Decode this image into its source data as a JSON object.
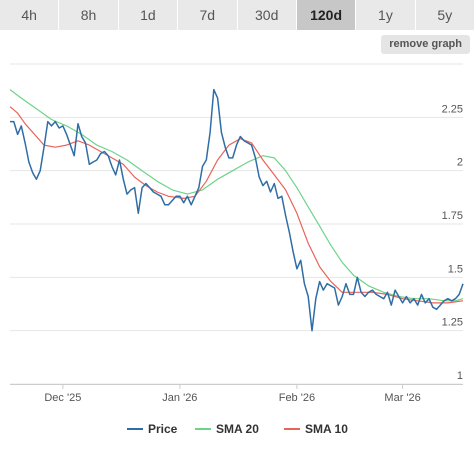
{
  "tabs": [
    {
      "label": "4h",
      "active": false
    },
    {
      "label": "8h",
      "active": false
    },
    {
      "label": "1d",
      "active": false
    },
    {
      "label": "7d",
      "active": false
    },
    {
      "label": "30d",
      "active": false
    },
    {
      "label": "120d",
      "active": true
    },
    {
      "label": "1y",
      "active": false
    },
    {
      "label": "5y",
      "active": false
    }
  ],
  "remove_button_label": "remove graph",
  "chart_data": {
    "type": "line",
    "x_ticks": [
      "Dec '25",
      "Jan '26",
      "Feb '26",
      "Mar '26"
    ],
    "x_tick_dates": [
      "2025-12-01",
      "2026-01-01",
      "2026-02-01",
      "2026-03-01"
    ],
    "x_range": [
      "2025-11-17",
      "2026-03-17"
    ],
    "ylim": [
      1,
      2.5
    ],
    "y_ticks": [
      1,
      1.25,
      1.5,
      1.75,
      2,
      2.25
    ],
    "y_tick_labels": [
      "1",
      "1.25",
      "1.5",
      "1.75",
      "2",
      "2.25"
    ],
    "y_axis_position": "right",
    "grid": "horizontal",
    "legend_position": "bottom",
    "series": [
      {
        "name": "Price",
        "color": "#2f6da6",
        "points": [
          [
            "2025-11-17",
            2.23
          ],
          [
            "2025-11-18",
            2.23
          ],
          [
            "2025-11-19",
            2.17
          ],
          [
            "2025-11-20",
            2.21
          ],
          [
            "2025-11-21",
            2.13
          ],
          [
            "2025-11-22",
            2.04
          ],
          [
            "2025-11-23",
            1.99
          ],
          [
            "2025-11-24",
            1.96
          ],
          [
            "2025-11-25",
            2.0
          ],
          [
            "2025-11-26",
            2.11
          ],
          [
            "2025-11-27",
            2.23
          ],
          [
            "2025-11-28",
            2.21
          ],
          [
            "2025-11-29",
            2.23
          ],
          [
            "2025-11-30",
            2.2
          ],
          [
            "2025-12-01",
            2.21
          ],
          [
            "2025-12-02",
            2.17
          ],
          [
            "2025-12-03",
            2.12
          ],
          [
            "2025-12-04",
            2.07
          ],
          [
            "2025-12-05",
            2.22
          ],
          [
            "2025-12-06",
            2.16
          ],
          [
            "2025-12-07",
            2.13
          ],
          [
            "2025-12-08",
            2.03
          ],
          [
            "2025-12-09",
            2.04
          ],
          [
            "2025-12-10",
            2.05
          ],
          [
            "2025-12-11",
            2.08
          ],
          [
            "2025-12-12",
            2.09
          ],
          [
            "2025-12-13",
            2.07
          ],
          [
            "2025-12-14",
            2.02
          ],
          [
            "2025-12-15",
            1.98
          ],
          [
            "2025-12-16",
            2.05
          ],
          [
            "2025-12-17",
            1.96
          ],
          [
            "2025-12-18",
            1.89
          ],
          [
            "2025-12-19",
            1.91
          ],
          [
            "2025-12-20",
            1.92
          ],
          [
            "2025-12-21",
            1.8
          ],
          [
            "2025-12-22",
            1.92
          ],
          [
            "2025-12-23",
            1.94
          ],
          [
            "2025-12-24",
            1.92
          ],
          [
            "2025-12-25",
            1.9
          ],
          [
            "2025-12-26",
            1.89
          ],
          [
            "2025-12-27",
            1.88
          ],
          [
            "2025-12-28",
            1.84
          ],
          [
            "2025-12-29",
            1.84
          ],
          [
            "2025-12-30",
            1.86
          ],
          [
            "2025-12-31",
            1.88
          ],
          [
            "2026-01-01",
            1.88
          ],
          [
            "2026-01-02",
            1.85
          ],
          [
            "2026-01-03",
            1.88
          ],
          [
            "2026-01-04",
            1.84
          ],
          [
            "2026-01-05",
            1.88
          ],
          [
            "2026-01-06",
            1.92
          ],
          [
            "2026-01-07",
            2.02
          ],
          [
            "2026-01-08",
            2.05
          ],
          [
            "2026-01-09",
            2.18
          ],
          [
            "2026-01-10",
            2.38
          ],
          [
            "2026-01-11",
            2.34
          ],
          [
            "2026-01-12",
            2.18
          ],
          [
            "2026-01-13",
            2.11
          ],
          [
            "2026-01-14",
            2.06
          ],
          [
            "2026-01-15",
            2.06
          ],
          [
            "2026-01-16",
            2.12
          ],
          [
            "2026-01-17",
            2.16
          ],
          [
            "2026-01-18",
            2.14
          ],
          [
            "2026-01-19",
            2.13
          ],
          [
            "2026-01-20",
            2.12
          ],
          [
            "2026-01-21",
            2.06
          ],
          [
            "2026-01-22",
            1.97
          ],
          [
            "2026-01-23",
            1.93
          ],
          [
            "2026-01-24",
            1.95
          ],
          [
            "2026-01-25",
            1.9
          ],
          [
            "2026-01-26",
            1.94
          ],
          [
            "2026-01-27",
            1.87
          ],
          [
            "2026-01-28",
            1.88
          ],
          [
            "2026-01-29",
            1.79
          ],
          [
            "2026-01-30",
            1.71
          ],
          [
            "2026-01-31",
            1.62
          ],
          [
            "2026-02-01",
            1.54
          ],
          [
            "2026-02-02",
            1.58
          ],
          [
            "2026-02-03",
            1.47
          ],
          [
            "2026-02-04",
            1.41
          ],
          [
            "2026-02-05",
            1.25
          ],
          [
            "2026-02-06",
            1.4
          ],
          [
            "2026-02-07",
            1.48
          ],
          [
            "2026-02-08",
            1.44
          ],
          [
            "2026-02-09",
            1.47
          ],
          [
            "2026-02-10",
            1.46
          ],
          [
            "2026-02-11",
            1.45
          ],
          [
            "2026-02-12",
            1.37
          ],
          [
            "2026-02-13",
            1.41
          ],
          [
            "2026-02-14",
            1.47
          ],
          [
            "2026-02-15",
            1.42
          ],
          [
            "2026-02-16",
            1.42
          ],
          [
            "2026-02-17",
            1.5
          ],
          [
            "2026-02-18",
            1.43
          ],
          [
            "2026-02-19",
            1.41
          ],
          [
            "2026-02-20",
            1.43
          ],
          [
            "2026-02-21",
            1.44
          ],
          [
            "2026-02-22",
            1.42
          ],
          [
            "2026-02-23",
            1.41
          ],
          [
            "2026-02-24",
            1.4
          ],
          [
            "2026-02-25",
            1.43
          ],
          [
            "2026-02-26",
            1.37
          ],
          [
            "2026-02-27",
            1.44
          ],
          [
            "2026-02-28",
            1.41
          ],
          [
            "2026-03-01",
            1.38
          ],
          [
            "2026-03-02",
            1.41
          ],
          [
            "2026-03-03",
            1.38
          ],
          [
            "2026-03-04",
            1.4
          ],
          [
            "2026-03-05",
            1.37
          ],
          [
            "2026-03-06",
            1.42
          ],
          [
            "2026-03-07",
            1.38
          ],
          [
            "2026-03-08",
            1.4
          ],
          [
            "2026-03-09",
            1.36
          ],
          [
            "2026-03-10",
            1.35
          ],
          [
            "2026-03-11",
            1.37
          ],
          [
            "2026-03-12",
            1.39
          ],
          [
            "2026-03-13",
            1.4
          ],
          [
            "2026-03-14",
            1.39
          ],
          [
            "2026-03-15",
            1.4
          ],
          [
            "2026-03-16",
            1.42
          ],
          [
            "2026-03-17",
            1.47
          ]
        ]
      },
      {
        "name": "SMA 20",
        "color": "#6fd38a",
        "points": [
          [
            "2025-11-17",
            2.38
          ],
          [
            "2025-11-20",
            2.34
          ],
          [
            "2025-11-24",
            2.29
          ],
          [
            "2025-11-28",
            2.24
          ],
          [
            "2025-12-02",
            2.21
          ],
          [
            "2025-12-06",
            2.17
          ],
          [
            "2025-12-10",
            2.12
          ],
          [
            "2025-12-14",
            2.09
          ],
          [
            "2025-12-18",
            2.05
          ],
          [
            "2025-12-22",
            2.0
          ],
          [
            "2025-12-26",
            1.95
          ],
          [
            "2025-12-30",
            1.91
          ],
          [
            "2026-01-03",
            1.89
          ],
          [
            "2026-01-07",
            1.91
          ],
          [
            "2026-01-11",
            1.96
          ],
          [
            "2026-01-15",
            2.0
          ],
          [
            "2026-01-19",
            2.04
          ],
          [
            "2026-01-23",
            2.07
          ],
          [
            "2026-01-26",
            2.06
          ],
          [
            "2026-01-29",
            2.0
          ],
          [
            "2026-02-01",
            1.92
          ],
          [
            "2026-02-04",
            1.83
          ],
          [
            "2026-02-07",
            1.74
          ],
          [
            "2026-02-10",
            1.65
          ],
          [
            "2026-02-13",
            1.57
          ],
          [
            "2026-02-16",
            1.51
          ],
          [
            "2026-02-20",
            1.46
          ],
          [
            "2026-02-24",
            1.43
          ],
          [
            "2026-02-28",
            1.41
          ],
          [
            "2026-03-04",
            1.4
          ],
          [
            "2026-03-08",
            1.4
          ],
          [
            "2026-03-12",
            1.39
          ],
          [
            "2026-03-15",
            1.39
          ],
          [
            "2026-03-17",
            1.4
          ]
        ]
      },
      {
        "name": "SMA 10",
        "color": "#e8635a",
        "points": [
          [
            "2025-11-17",
            2.3
          ],
          [
            "2025-11-19",
            2.27
          ],
          [
            "2025-11-21",
            2.22
          ],
          [
            "2025-11-24",
            2.16
          ],
          [
            "2025-11-26",
            2.12
          ],
          [
            "2025-11-29",
            2.11
          ],
          [
            "2025-12-02",
            2.12
          ],
          [
            "2025-12-05",
            2.14
          ],
          [
            "2025-12-08",
            2.12
          ],
          [
            "2025-12-11",
            2.09
          ],
          [
            "2025-12-14",
            2.06
          ],
          [
            "2025-12-17",
            2.03
          ],
          [
            "2025-12-20",
            1.97
          ],
          [
            "2025-12-23",
            1.93
          ],
          [
            "2025-12-26",
            1.9
          ],
          [
            "2025-12-29",
            1.88
          ],
          [
            "2026-01-02",
            1.87
          ],
          [
            "2026-01-05",
            1.88
          ],
          [
            "2026-01-08",
            1.95
          ],
          [
            "2026-01-11",
            2.05
          ],
          [
            "2026-01-14",
            2.12
          ],
          [
            "2026-01-17",
            2.15
          ],
          [
            "2026-01-20",
            2.13
          ],
          [
            "2026-01-23",
            2.05
          ],
          [
            "2026-01-26",
            1.98
          ],
          [
            "2026-01-29",
            1.91
          ],
          [
            "2026-02-01",
            1.8
          ],
          [
            "2026-02-04",
            1.66
          ],
          [
            "2026-02-07",
            1.55
          ],
          [
            "2026-02-10",
            1.48
          ],
          [
            "2026-02-13",
            1.43
          ],
          [
            "2026-02-17",
            1.43
          ],
          [
            "2026-02-21",
            1.43
          ],
          [
            "2026-02-25",
            1.42
          ],
          [
            "2026-03-01",
            1.4
          ],
          [
            "2026-03-05",
            1.39
          ],
          [
            "2026-03-09",
            1.38
          ],
          [
            "2026-03-13",
            1.38
          ],
          [
            "2026-03-17",
            1.39
          ]
        ]
      }
    ]
  }
}
